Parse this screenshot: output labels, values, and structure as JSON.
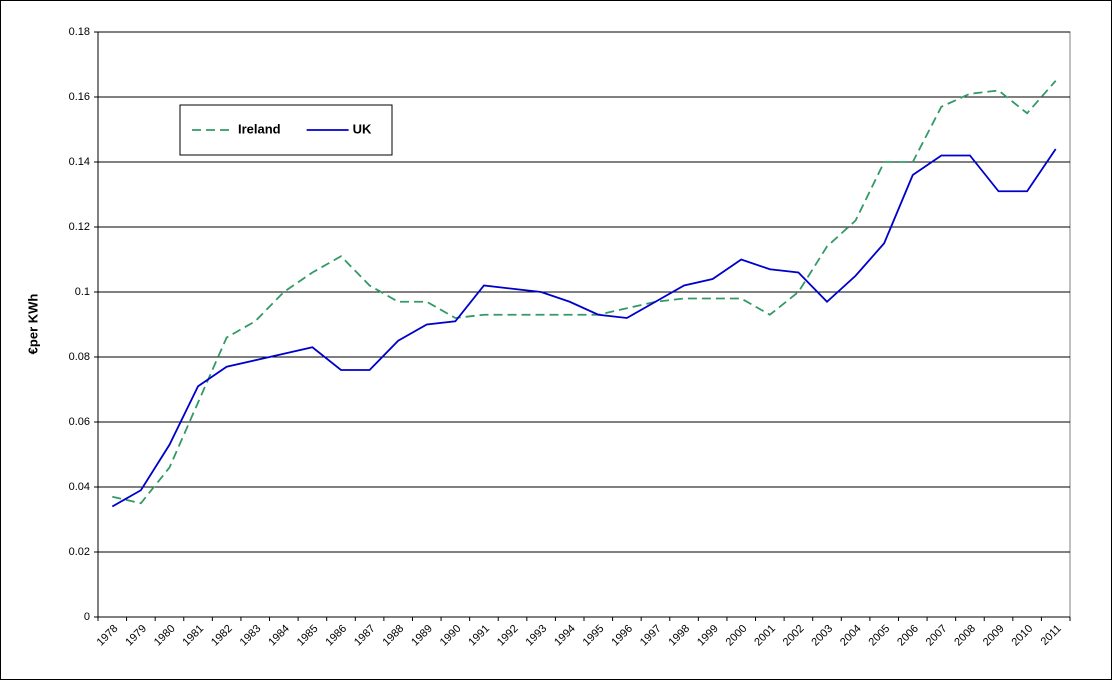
{
  "chart_data": {
    "type": "line",
    "y_label": "€per KWh",
    "categories": [
      "1978",
      "1979",
      "1980",
      "1981",
      "1982",
      "1983",
      "1984",
      "1985",
      "1986",
      "1987",
      "1988",
      "1989",
      "1990",
      "1991",
      "1992",
      "1993",
      "1994",
      "1995",
      "1996",
      "1997",
      "1998",
      "1999",
      "2000",
      "2001",
      "2002",
      "2003",
      "2004",
      "2005",
      "2006",
      "2007",
      "2008",
      "2009",
      "2010",
      "2011"
    ],
    "series": [
      {
        "name": "Ireland",
        "color": "#339966",
        "dashed": true,
        "values": [
          0.037,
          0.035,
          0.046,
          0.066,
          0.086,
          0.091,
          0.1,
          0.106,
          0.111,
          0.102,
          0.097,
          0.097,
          0.092,
          0.093,
          0.093,
          0.093,
          0.093,
          0.093,
          0.095,
          0.097,
          0.098,
          0.098,
          0.098,
          0.093,
          0.1,
          0.114,
          0.122,
          0.14,
          0.14,
          0.157,
          0.161,
          0.162,
          0.155,
          0.165
        ]
      },
      {
        "name": "UK",
        "color": "#0000cc",
        "dashed": false,
        "values": [
          0.034,
          0.039,
          0.053,
          0.071,
          0.077,
          0.079,
          0.081,
          0.083,
          0.076,
          0.076,
          0.085,
          0.09,
          0.091,
          0.102,
          0.101,
          0.1,
          0.097,
          0.093,
          0.092,
          0.097,
          0.102,
          0.104,
          0.11,
          0.107,
          0.106,
          0.097,
          0.105,
          0.115,
          0.136,
          0.142,
          0.142,
          0.131,
          0.131,
          0.144
        ]
      }
    ],
    "ylim": [
      0,
      0.18
    ],
    "yticks": [
      0,
      0.02,
      0.04,
      0.06,
      0.08,
      0.1,
      0.12,
      0.14,
      0.16,
      0.18
    ],
    "grid": true,
    "legend": "upper left"
  }
}
